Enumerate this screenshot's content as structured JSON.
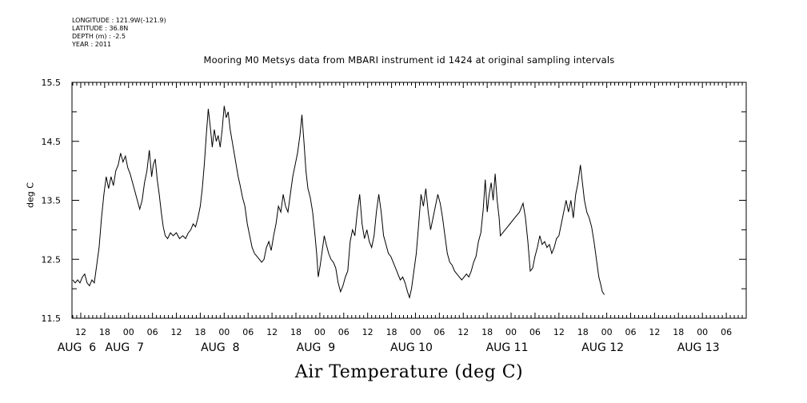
{
  "metadata": {
    "longitude": "LONGITUDE : 121.9W(-121.9)",
    "latitude": "LATITUDE : 36.8N",
    "depth": "DEPTH (m) : -2.5",
    "year": "YEAR : 2011"
  },
  "chart_data": {
    "type": "line",
    "title": "Mooring M0 Metsys data from MBARI instrument id 1424 at original sampling intervals",
    "xlabel": "Air Temperature (deg C)",
    "ylabel": "deg C",
    "ylim": [
      11.5,
      15.5
    ],
    "yticks": [
      11.5,
      12.5,
      13.5,
      14.5,
      15.5
    ],
    "y_minor_step": 0.5,
    "xlim": [
      9.8,
      179.0
    ],
    "x_unit": "hours since Aug 6 00:00, 2011",
    "xticks": [
      {
        "x": 12,
        "label": "12"
      },
      {
        "x": 18,
        "label": "18"
      },
      {
        "x": 24,
        "label": "00"
      },
      {
        "x": 30,
        "label": "06"
      },
      {
        "x": 36,
        "label": "12"
      },
      {
        "x": 42,
        "label": "18"
      },
      {
        "x": 48,
        "label": "00"
      },
      {
        "x": 54,
        "label": "06"
      },
      {
        "x": 60,
        "label": "12"
      },
      {
        "x": 66,
        "label": "18"
      },
      {
        "x": 72,
        "label": "00"
      },
      {
        "x": 78,
        "label": "06"
      },
      {
        "x": 84,
        "label": "12"
      },
      {
        "x": 90,
        "label": "18"
      },
      {
        "x": 96,
        "label": "00"
      },
      {
        "x": 102,
        "label": "06"
      },
      {
        "x": 108,
        "label": "12"
      },
      {
        "x": 114,
        "label": "18"
      },
      {
        "x": 120,
        "label": "00"
      },
      {
        "x": 126,
        "label": "06"
      },
      {
        "x": 132,
        "label": "12"
      },
      {
        "x": 138,
        "label": "18"
      },
      {
        "x": 144,
        "label": "00"
      },
      {
        "x": 150,
        "label": "06"
      },
      {
        "x": 156,
        "label": "12"
      },
      {
        "x": 162,
        "label": "18"
      },
      {
        "x": 168,
        "label": "00"
      },
      {
        "x": 174,
        "label": "06"
      }
    ],
    "days": [
      {
        "x": 12,
        "label": "AUG  6"
      },
      {
        "x": 24,
        "label": "AUG  7"
      },
      {
        "x": 48,
        "label": "AUG  8"
      },
      {
        "x": 72,
        "label": "AUG  9"
      },
      {
        "x": 96,
        "label": "AUG 10"
      },
      {
        "x": 120,
        "label": "AUG 11"
      },
      {
        "x": 144,
        "label": "AUG 12"
      },
      {
        "x": 168,
        "label": "AUG 13"
      }
    ],
    "grid": false,
    "series": [
      {
        "color": "#000000",
        "points": [
          [
            10.0,
            12.15
          ],
          [
            10.6,
            12.1
          ],
          [
            11.2,
            12.15
          ],
          [
            11.8,
            12.1
          ],
          [
            12.4,
            12.2
          ],
          [
            13.0,
            12.25
          ],
          [
            13.6,
            12.1
          ],
          [
            14.2,
            12.05
          ],
          [
            14.8,
            12.15
          ],
          [
            15.4,
            12.1
          ],
          [
            16.0,
            12.4
          ],
          [
            16.6,
            12.7
          ],
          [
            17.2,
            13.2
          ],
          [
            17.8,
            13.6
          ],
          [
            18.4,
            13.9
          ],
          [
            19.0,
            13.7
          ],
          [
            19.6,
            13.9
          ],
          [
            20.2,
            13.75
          ],
          [
            20.8,
            14.0
          ],
          [
            21.4,
            14.1
          ],
          [
            22.0,
            14.3
          ],
          [
            22.6,
            14.15
          ],
          [
            23.2,
            14.25
          ],
          [
            23.8,
            14.05
          ],
          [
            24.4,
            13.95
          ],
          [
            25.0,
            13.8
          ],
          [
            25.6,
            13.65
          ],
          [
            26.2,
            13.5
          ],
          [
            26.8,
            13.35
          ],
          [
            27.4,
            13.5
          ],
          [
            28.0,
            13.8
          ],
          [
            28.6,
            14.0
          ],
          [
            29.2,
            14.35
          ],
          [
            29.8,
            13.9
          ],
          [
            30.2,
            14.1
          ],
          [
            30.7,
            14.2
          ],
          [
            31.2,
            13.85
          ],
          [
            31.7,
            13.6
          ],
          [
            32.2,
            13.3
          ],
          [
            32.7,
            13.05
          ],
          [
            33.2,
            12.9
          ],
          [
            33.8,
            12.85
          ],
          [
            34.5,
            12.95
          ],
          [
            35.2,
            12.9
          ],
          [
            36.0,
            12.95
          ],
          [
            36.8,
            12.85
          ],
          [
            37.6,
            12.9
          ],
          [
            38.3,
            12.85
          ],
          [
            39.0,
            12.95
          ],
          [
            39.6,
            13.0
          ],
          [
            40.2,
            13.1
          ],
          [
            40.8,
            13.05
          ],
          [
            41.4,
            13.2
          ],
          [
            42.0,
            13.4
          ],
          [
            42.5,
            13.7
          ],
          [
            43.0,
            14.1
          ],
          [
            43.5,
            14.6
          ],
          [
            44.0,
            15.05
          ],
          [
            44.5,
            14.75
          ],
          [
            45.0,
            14.4
          ],
          [
            45.5,
            14.7
          ],
          [
            46.0,
            14.5
          ],
          [
            46.5,
            14.6
          ],
          [
            47.0,
            14.4
          ],
          [
            47.5,
            14.7
          ],
          [
            48.0,
            15.1
          ],
          [
            48.5,
            14.9
          ],
          [
            49.0,
            15.0
          ],
          [
            49.5,
            14.7
          ],
          [
            50.0,
            14.5
          ],
          [
            50.5,
            14.3
          ],
          [
            51.0,
            14.1
          ],
          [
            51.5,
            13.9
          ],
          [
            52.0,
            13.75
          ],
          [
            52.6,
            13.55
          ],
          [
            53.2,
            13.4
          ],
          [
            53.8,
            13.1
          ],
          [
            54.4,
            12.9
          ],
          [
            55.0,
            12.7
          ],
          [
            55.6,
            12.6
          ],
          [
            56.2,
            12.55
          ],
          [
            56.8,
            12.5
          ],
          [
            57.4,
            12.45
          ],
          [
            58.0,
            12.5
          ],
          [
            58.6,
            12.7
          ],
          [
            59.2,
            12.8
          ],
          [
            59.8,
            12.65
          ],
          [
            60.4,
            12.9
          ],
          [
            61.0,
            13.1
          ],
          [
            61.6,
            13.4
          ],
          [
            62.2,
            13.3
          ],
          [
            62.8,
            13.6
          ],
          [
            63.4,
            13.4
          ],
          [
            64.0,
            13.3
          ],
          [
            64.6,
            13.6
          ],
          [
            65.2,
            13.9
          ],
          [
            65.8,
            14.1
          ],
          [
            66.4,
            14.3
          ],
          [
            67.0,
            14.6
          ],
          [
            67.5,
            14.95
          ],
          [
            68.0,
            14.5
          ],
          [
            68.5,
            14.0
          ],
          [
            69.0,
            13.7
          ],
          [
            69.6,
            13.55
          ],
          [
            70.2,
            13.3
          ],
          [
            70.8,
            12.9
          ],
          [
            71.2,
            12.6
          ],
          [
            71.6,
            12.2
          ],
          [
            72.1,
            12.4
          ],
          [
            72.6,
            12.65
          ],
          [
            73.1,
            12.9
          ],
          [
            73.6,
            12.75
          ],
          [
            74.2,
            12.6
          ],
          [
            74.8,
            12.5
          ],
          [
            75.4,
            12.45
          ],
          [
            76.0,
            12.35
          ],
          [
            76.6,
            12.1
          ],
          [
            77.2,
            11.95
          ],
          [
            77.8,
            12.05
          ],
          [
            78.4,
            12.2
          ],
          [
            79.0,
            12.3
          ],
          [
            79.6,
            12.8
          ],
          [
            80.2,
            13.0
          ],
          [
            80.8,
            12.9
          ],
          [
            81.4,
            13.3
          ],
          [
            82.0,
            13.6
          ],
          [
            82.6,
            13.1
          ],
          [
            83.2,
            12.85
          ],
          [
            83.8,
            13.0
          ],
          [
            84.4,
            12.8
          ],
          [
            85.0,
            12.7
          ],
          [
            85.6,
            12.9
          ],
          [
            86.2,
            13.3
          ],
          [
            86.8,
            13.6
          ],
          [
            87.4,
            13.3
          ],
          [
            88.0,
            12.9
          ],
          [
            88.6,
            12.75
          ],
          [
            89.2,
            12.6
          ],
          [
            89.8,
            12.55
          ],
          [
            90.4,
            12.45
          ],
          [
            91.0,
            12.35
          ],
          [
            91.6,
            12.25
          ],
          [
            92.2,
            12.15
          ],
          [
            92.8,
            12.2
          ],
          [
            93.4,
            12.1
          ],
          [
            94.0,
            11.95
          ],
          [
            94.5,
            11.85
          ],
          [
            95.0,
            12.0
          ],
          [
            95.6,
            12.3
          ],
          [
            96.2,
            12.6
          ],
          [
            96.8,
            13.1
          ],
          [
            97.4,
            13.6
          ],
          [
            98.0,
            13.4
          ],
          [
            98.6,
            13.7
          ],
          [
            99.2,
            13.3
          ],
          [
            99.8,
            13.0
          ],
          [
            100.4,
            13.2
          ],
          [
            101.0,
            13.4
          ],
          [
            101.6,
            13.6
          ],
          [
            102.2,
            13.45
          ],
          [
            102.8,
            13.2
          ],
          [
            103.4,
            12.9
          ],
          [
            104.0,
            12.6
          ],
          [
            104.6,
            12.45
          ],
          [
            105.2,
            12.4
          ],
          [
            105.8,
            12.3
          ],
          [
            106.4,
            12.25
          ],
          [
            107.0,
            12.2
          ],
          [
            107.6,
            12.15
          ],
          [
            108.2,
            12.2
          ],
          [
            108.8,
            12.25
          ],
          [
            109.4,
            12.2
          ],
          [
            110.0,
            12.3
          ],
          [
            110.6,
            12.45
          ],
          [
            111.2,
            12.55
          ],
          [
            111.8,
            12.8
          ],
          [
            112.4,
            12.95
          ],
          [
            113.0,
            13.35
          ],
          [
            113.5,
            13.85
          ],
          [
            114.0,
            13.3
          ],
          [
            114.5,
            13.6
          ],
          [
            115.0,
            13.8
          ],
          [
            115.5,
            13.5
          ],
          [
            116.0,
            13.95
          ],
          [
            116.5,
            13.5
          ],
          [
            117.0,
            13.2
          ],
          [
            117.3,
            12.9
          ],
          [
            118.5,
            13.0
          ],
          [
            119.7,
            13.1
          ],
          [
            120.9,
            13.2
          ],
          [
            122.1,
            13.3
          ],
          [
            123.0,
            13.45
          ],
          [
            123.6,
            13.2
          ],
          [
            124.2,
            12.8
          ],
          [
            124.8,
            12.3
          ],
          [
            125.4,
            12.35
          ],
          [
            126.0,
            12.55
          ],
          [
            126.6,
            12.7
          ],
          [
            127.2,
            12.9
          ],
          [
            127.8,
            12.75
          ],
          [
            128.4,
            12.8
          ],
          [
            129.0,
            12.7
          ],
          [
            129.6,
            12.75
          ],
          [
            130.2,
            12.6
          ],
          [
            130.8,
            12.7
          ],
          [
            131.4,
            12.85
          ],
          [
            132.0,
            12.9
          ],
          [
            132.6,
            13.1
          ],
          [
            133.2,
            13.3
          ],
          [
            133.8,
            13.5
          ],
          [
            134.4,
            13.3
          ],
          [
            135.0,
            13.5
          ],
          [
            135.6,
            13.2
          ],
          [
            136.2,
            13.6
          ],
          [
            136.8,
            13.8
          ],
          [
            137.4,
            14.1
          ],
          [
            137.9,
            13.8
          ],
          [
            138.4,
            13.5
          ],
          [
            139.0,
            13.3
          ],
          [
            139.6,
            13.2
          ],
          [
            140.2,
            13.05
          ],
          [
            140.8,
            12.8
          ],
          [
            141.2,
            12.6
          ],
          [
            141.6,
            12.4
          ],
          [
            142.0,
            12.2
          ],
          [
            142.4,
            12.1
          ],
          [
            142.9,
            11.95
          ],
          [
            143.4,
            11.9
          ]
        ]
      }
    ]
  }
}
